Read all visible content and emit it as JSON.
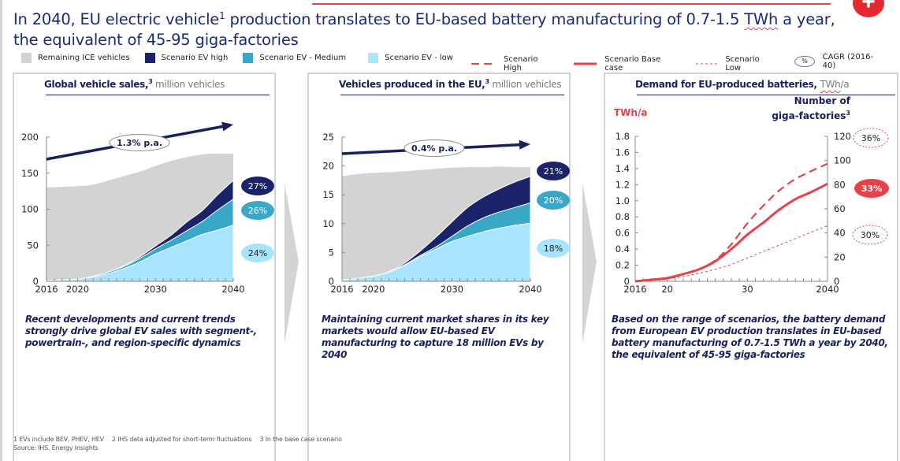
{
  "header": {
    "title_part1": "In 2040, EU electric vehicle",
    "title_sup": "1",
    "title_part2": " production translates to EU-based battery manufacturing of 0.7-1.5 ",
    "title_twh": "TWh",
    "title_part3": " a year,",
    "title_line2": "the equivalent of 45-95 giga-factories",
    "plus_label": "+"
  },
  "legend_left": [
    {
      "label": "Remaining ICE vehicles",
      "color": "#d3d3d3"
    },
    {
      "label": "Scenario EV high",
      "color": "#1b246b"
    },
    {
      "label": "Scenario EV - Medium",
      "color": "#39a8c6"
    },
    {
      "label": "Scenario EV - low",
      "color": "#a8e4fb"
    }
  ],
  "legend_right": [
    {
      "label": "Scenario High",
      "style": "dashed"
    },
    {
      "label": "Scenario  Base case",
      "style": "solid"
    },
    {
      "label": "Scenario  Low",
      "style": "dotted"
    },
    {
      "label": "CAGR (2016-40)",
      "style": "oval",
      "symbol": "%"
    }
  ],
  "colors": {
    "ice": "#d3d3d3",
    "ev_high": "#1b246b",
    "ev_medium": "#39a8c6",
    "ev_low": "#a8e4fb",
    "red": "#e8414a",
    "navy": "#1a1f5e"
  },
  "panels": [
    {
      "title_bold": "Global vehicle sales,",
      "title_sup": "3",
      "title_light": " million vehicles",
      "caption": "Recent developments and current trends strongly drive global EV sales with segment-, powertrain-, and region-specific dynamics"
    },
    {
      "title_bold": "Vehicles produced in the EU,",
      "title_sup": "3",
      "title_light": " million vehicles",
      "caption": "Maintaining current market shares in its key markets would allow EU-based EV manufacturing to capture 18 million EVs by 2040"
    },
    {
      "title_bold": "Demand for EU-produced batteries,",
      "title_light_twh": "TWh",
      "title_light_rest": "/a",
      "left_axis_title": "TWh/a",
      "right_axis_title_line1": "Number of",
      "right_axis_title_line2": "giga-factories",
      "right_axis_title_sup": "3",
      "caption": "Based on the range of scenarios, the battery demand from European EV production translates in EU-based battery manufacturing of 0.7-1.5 TWh a year by 2040, the equivalent of 45-95 giga-factories"
    }
  ],
  "footnotes": {
    "n1": "1 EVs include BEV, PHEV, HEV",
    "n2": "2 IHS data adjusted for short-term fluctuations",
    "n3": "3 In the base case scenario",
    "source": "Source: IHS, Energy Insights"
  },
  "chart_data": [
    {
      "type": "area",
      "title": "Global vehicle sales, million vehicles",
      "x": [
        2016,
        2018,
        2020,
        2022,
        2024,
        2026,
        2028,
        2030,
        2032,
        2034,
        2036,
        2038,
        2040
      ],
      "xticks": [
        "2016",
        "2020",
        "2030",
        "2040"
      ],
      "ylim": [
        0,
        200
      ],
      "yticks": [
        0,
        50,
        100,
        150,
        200
      ],
      "series": [
        {
          "name": "Scenario EV - low",
          "values": [
            1,
            2,
            3,
            6,
            11,
            18,
            27,
            38,
            47,
            56,
            65,
            71,
            78
          ]
        },
        {
          "name": "Scenario EV - Medium",
          "values": [
            1,
            2,
            3,
            7,
            13,
            21,
            32,
            45,
            57,
            70,
            83,
            99,
            114
          ]
        },
        {
          "name": "Scenario EV high",
          "values": [
            1,
            2,
            3,
            7,
            13,
            22,
            34,
            49,
            64,
            82,
            98,
            120,
            140
          ]
        },
        {
          "name": "Remaining ICE vehicles",
          "values": [
            130,
            131,
            132,
            134,
            140,
            146,
            152,
            160,
            167,
            172,
            176,
            177,
            177
          ]
        }
      ],
      "trend_annotation": "1.3% p.a.",
      "cagr_labels": [
        {
          "series": "Scenario EV high",
          "label": "27%"
        },
        {
          "series": "Scenario EV - Medium",
          "label": "26%"
        },
        {
          "series": "Scenario EV - low",
          "label": "24%"
        }
      ]
    },
    {
      "type": "area",
      "title": "Vehicles produced in the EU, million vehicles",
      "x": [
        2016,
        2018,
        2020,
        2022,
        2024,
        2026,
        2028,
        2030,
        2032,
        2034,
        2036,
        2038,
        2040
      ],
      "xticks": [
        "2016",
        "2020",
        "2030",
        "2040"
      ],
      "ylim": [
        0,
        25
      ],
      "yticks": [
        0,
        5,
        10,
        15,
        20,
        25
      ],
      "series": [
        {
          "name": "Scenario EV - low",
          "values": [
            0.2,
            0.5,
            0.9,
            1.6,
            2.8,
            4.3,
            5.6,
            6.9,
            7.8,
            8.6,
            9.2,
            9.7,
            10.1
          ]
        },
        {
          "name": "Scenario EV - Medium",
          "values": [
            0.2,
            0.5,
            0.9,
            1.6,
            2.9,
            4.5,
            6.0,
            7.8,
            9.6,
            11.0,
            12.0,
            12.8,
            13.6
          ]
        },
        {
          "name": "Scenario EV high",
          "values": [
            0.2,
            0.5,
            0.9,
            1.7,
            3.2,
            5.3,
            7.7,
            10.3,
            12.8,
            14.6,
            16.0,
            17.2,
            18.2
          ]
        },
        {
          "name": "Remaining ICE vehicles",
          "values": [
            18.2,
            18.6,
            18.8,
            18.9,
            19.1,
            19.3,
            19.5,
            19.7,
            19.8,
            19.8,
            19.9,
            19.8,
            19.8
          ]
        }
      ],
      "trend_annotation": "0.4% p.a.",
      "cagr_labels": [
        {
          "series": "Scenario EV high",
          "label": "21%"
        },
        {
          "series": "Scenario EV - Medium",
          "label": "20%"
        },
        {
          "series": "Scenario EV - low",
          "label": "18%"
        }
      ]
    },
    {
      "type": "line",
      "title": "Demand for EU-produced batteries, TWh/a",
      "x": [
        2016,
        2018,
        2020,
        2022,
        2024,
        2026,
        2028,
        2030,
        2032,
        2034,
        2036,
        2038,
        2040
      ],
      "xticks": [
        "2016",
        "20",
        "30",
        "2040"
      ],
      "ylabel": "TWh/a",
      "ylim": [
        0,
        1.8
      ],
      "yticks": [
        "0",
        "0.2",
        "0.4",
        "0.6",
        "0.8",
        "1.0",
        "1.2",
        "1.4",
        "1.6",
        "1.8"
      ],
      "y2label": "Number of giga-factories",
      "y2lim": [
        0,
        120
      ],
      "y2ticks": [
        0,
        20,
        40,
        60,
        80,
        100,
        120
      ],
      "series": [
        {
          "name": "Scenario High",
          "style": "dashed",
          "values": [
            0,
            0.02,
            0.04,
            0.09,
            0.15,
            0.26,
            0.46,
            0.72,
            0.94,
            1.13,
            1.27,
            1.37,
            1.46
          ]
        },
        {
          "name": "Scenario Base case",
          "style": "solid",
          "values": [
            0,
            0.02,
            0.04,
            0.09,
            0.15,
            0.25,
            0.4,
            0.58,
            0.73,
            0.89,
            1.02,
            1.11,
            1.21
          ]
        },
        {
          "name": "Scenario Low",
          "style": "dotted",
          "values": [
            0,
            0.01,
            0.03,
            0.06,
            0.1,
            0.15,
            0.21,
            0.29,
            0.37,
            0.45,
            0.53,
            0.61,
            0.69
          ]
        }
      ],
      "cagr_labels": [
        {
          "series": "Scenario High",
          "label": "36%"
        },
        {
          "series": "Scenario Base case",
          "label": "33%"
        },
        {
          "series": "Scenario Low",
          "label": "30%"
        }
      ]
    }
  ]
}
